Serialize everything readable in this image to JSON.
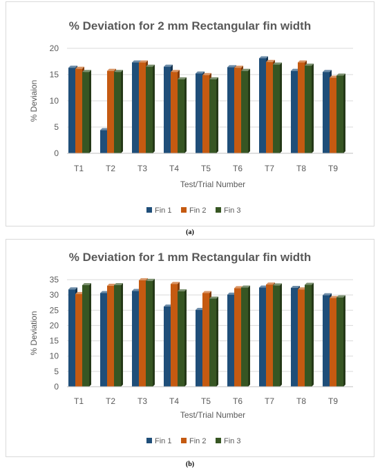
{
  "chart_data": [
    {
      "type": "bar",
      "panel_label": "(a)",
      "title": "% Deviation for 2 mm Rectangular fin width",
      "xlabel": "Test/Trial Number",
      "ylabel": "% Deviaion",
      "ylim": [
        0,
        20
      ],
      "yticks": [
        0,
        5,
        10,
        15,
        20
      ],
      "grid": true,
      "legend_position": "bottom",
      "categories": [
        "T1",
        "T2",
        "T3",
        "T4",
        "T5",
        "T6",
        "T7",
        "T8",
        "T9"
      ],
      "series": [
        {
          "name": "Fin 1",
          "color": "#1f4e79",
          "values": [
            16.3,
            4.4,
            17.3,
            16.5,
            15.2,
            16.4,
            18.1,
            15.7,
            15.5
          ]
        },
        {
          "name": "Fin 2",
          "color": "#c55a11",
          "values": [
            16.1,
            15.7,
            17.3,
            15.5,
            14.9,
            16.3,
            17.4,
            17.3,
            14.4
          ]
        },
        {
          "name": "Fin 3",
          "color": "#375623",
          "values": [
            15.5,
            15.5,
            16.5,
            14.1,
            14.1,
            15.7,
            16.9,
            16.7,
            14.8
          ]
        }
      ]
    },
    {
      "type": "bar",
      "panel_label": "(b)",
      "title": "% Deviation for 1 mm Rectangular fin width",
      "xlabel": "Test/Trial Number",
      "ylabel": "% Deviation",
      "ylim": [
        0,
        35
      ],
      "yticks": [
        0,
        5,
        10,
        15,
        20,
        25,
        30,
        35
      ],
      "grid": true,
      "legend_position": "bottom",
      "categories": [
        "T1",
        "T2",
        "T3",
        "T4",
        "T5",
        "T6",
        "T7",
        "T8",
        "T9"
      ],
      "series": [
        {
          "name": "Fin 1",
          "color": "#1f4e79",
          "values": [
            31.8,
            30.6,
            31.3,
            26.2,
            25.1,
            30.1,
            32.4,
            32.3,
            29.9
          ]
        },
        {
          "name": "Fin 2",
          "color": "#c55a11",
          "values": [
            30.3,
            33.0,
            34.8,
            33.6,
            30.6,
            32.2,
            33.4,
            31.8,
            29.0
          ]
        },
        {
          "name": "Fin 3",
          "color": "#375623",
          "values": [
            33.2,
            33.2,
            34.6,
            31.2,
            28.8,
            32.4,
            33.1,
            33.3,
            29.2
          ]
        }
      ]
    }
  ]
}
